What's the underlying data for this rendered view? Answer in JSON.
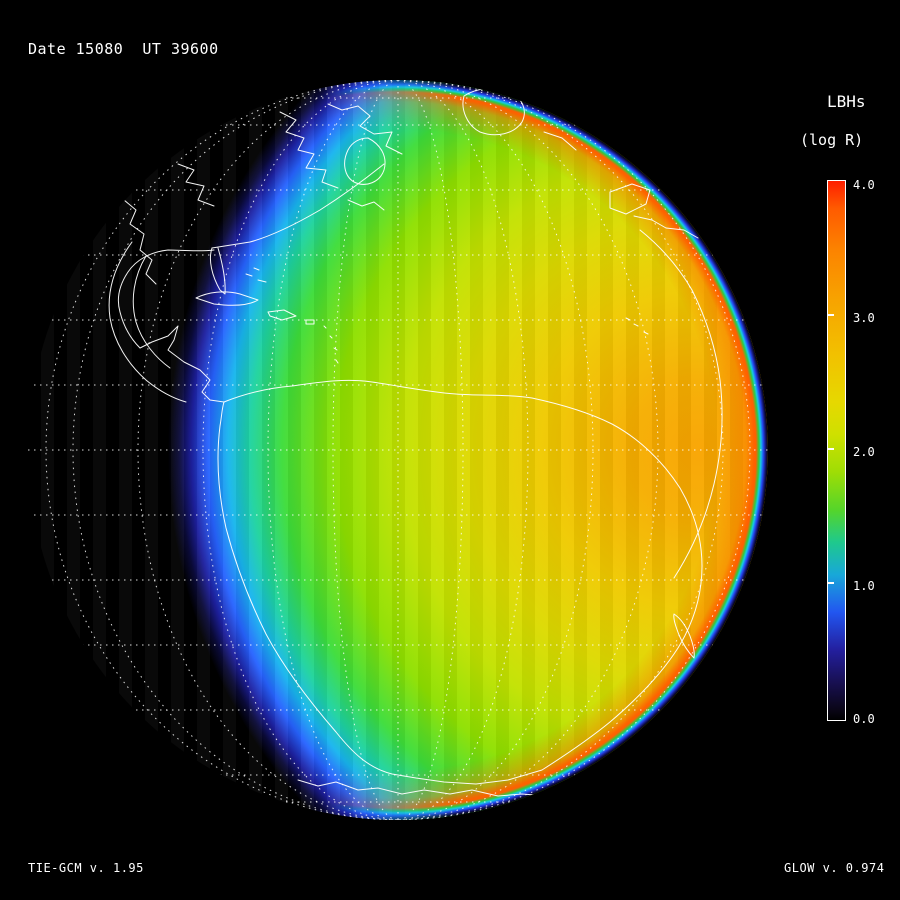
{
  "header": {
    "line": "Date 15080  UT 39600"
  },
  "colorbar": {
    "title": "LBHs",
    "subtitle": "(log R)",
    "tick_labels": [
      "4.0",
      "3.0",
      "2.0",
      "1.0",
      "0.0"
    ]
  },
  "footer": {
    "left": "TIE-GCM v. 1.95",
    "right": "GLOW v. 0.974"
  },
  "chart_data": {
    "type": "heatmap",
    "title": "LBHs (log R)",
    "date": "15080",
    "ut": "39600",
    "models": [
      "TIE-GCM v. 1.95",
      "GLOW v. 0.974"
    ],
    "projection": "orthographic globe of Earth (Americas / Atlantic view), night side on the left, dayside on the right",
    "colorbar": {
      "label": "LBHs",
      "units": "log R",
      "min": 0.0,
      "max": 4.0,
      "ticks": [
        4.0,
        3.0,
        2.0,
        1.0,
        0.0
      ],
      "position": "right"
    },
    "colormap_stops": [
      {
        "value": 0.0,
        "color": "#000000"
      },
      {
        "value": 0.3,
        "color": "#181052"
      },
      {
        "value": 0.6,
        "color": "#231f9e"
      },
      {
        "value": 0.9,
        "color": "#2256f0"
      },
      {
        "value": 1.2,
        "color": "#18a8d8"
      },
      {
        "value": 1.5,
        "color": "#1fc98c"
      },
      {
        "value": 1.8,
        "color": "#55d52a"
      },
      {
        "value": 2.2,
        "color": "#9fdd05"
      },
      {
        "value": 2.5,
        "color": "#cfe000"
      },
      {
        "value": 2.8,
        "color": "#e6d800"
      },
      {
        "value": 3.1,
        "color": "#f2c000"
      },
      {
        "value": 3.4,
        "color": "#f7a300"
      },
      {
        "value": 3.7,
        "color": "#fc8400"
      },
      {
        "value": 3.9,
        "color": "#ff5a00"
      },
      {
        "value": 4.0,
        "color": "#ff1e00"
      }
    ],
    "equator_profile_log_R": [
      {
        "frac_across_disk": 0.18,
        "value": 0.0
      },
      {
        "frac_across_disk": 0.2,
        "value": 0.6
      },
      {
        "frac_across_disk": 0.23,
        "value": 1.1
      },
      {
        "frac_across_disk": 0.27,
        "value": 1.5
      },
      {
        "frac_across_disk": 0.33,
        "value": 2.0
      },
      {
        "frac_across_disk": 0.45,
        "value": 2.5
      },
      {
        "frac_across_disk": 0.6,
        "value": 2.8
      },
      {
        "frac_across_disk": 0.75,
        "value": 3.1
      },
      {
        "frac_across_disk": 0.9,
        "value": 3.3
      },
      {
        "frac_across_disk": 0.98,
        "value": 3.8
      },
      {
        "frac_across_disk": 1.0,
        "value": 0.0
      }
    ],
    "features": [
      "black night side over western North America / eastern Pacific with dotted graticule",
      "dawn terminator (blue-cyan-green transition) crossing the Americas",
      "yellow-orange dayside maximum toward the right limb",
      "rainbow limb-brightening ring around the sunlit edge",
      "white coastline overlay of the Americas, Iberia and west Africa",
      "dotted latitude/longitude grid"
    ]
  }
}
